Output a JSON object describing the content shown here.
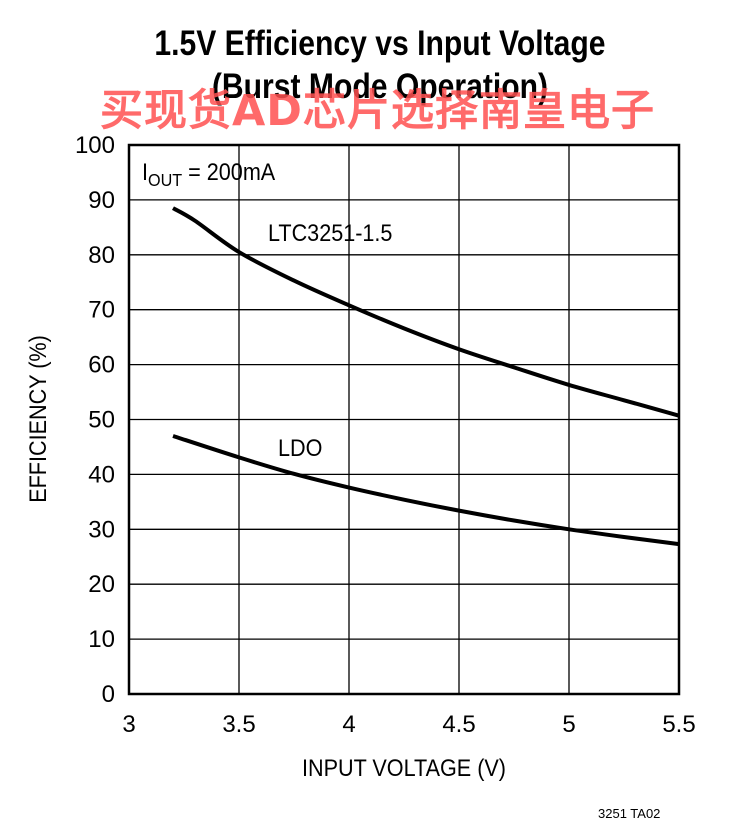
{
  "title_line1": "1.5V Efficiency vs Input Voltage",
  "title_line2": "(Burst Mode Operation)",
  "watermark": "买现货AD芯片选择南皇电子",
  "footer_code": "3251 TA02",
  "chart_data": {
    "type": "line",
    "title": "1.5V Efficiency vs Input Voltage (Burst Mode Operation)",
    "xlabel": "INPUT VOLTAGE (V)",
    "ylabel": "EFFICIENCY (%)",
    "xlim": [
      3,
      5.5
    ],
    "ylim": [
      0,
      100
    ],
    "xticks": [
      3,
      3.5,
      4,
      4.5,
      5,
      5.5
    ],
    "xtick_labels": [
      "3",
      "3.5",
      "4",
      "4.5",
      "5",
      "5.5"
    ],
    "yticks": [
      0,
      10,
      20,
      30,
      40,
      50,
      60,
      70,
      80,
      90,
      100
    ],
    "ytick_labels": [
      "0",
      "10",
      "20",
      "30",
      "40",
      "50",
      "60",
      "70",
      "80",
      "90",
      "100"
    ],
    "grid": true,
    "annotation": {
      "prefix": "I",
      "subscript": "OUT",
      "suffix": " = 200mA"
    },
    "series": [
      {
        "name": "LTC3251-1.5",
        "x": [
          3.2,
          3.3,
          3.5,
          3.75,
          4.0,
          4.25,
          4.5,
          4.75,
          5.0,
          5.25,
          5.5
        ],
        "y": [
          88.5,
          86.2,
          80.5,
          75.3,
          70.8,
          66.6,
          62.8,
          59.5,
          56.3,
          53.5,
          50.7
        ]
      },
      {
        "name": "LDO",
        "x": [
          3.2,
          3.5,
          3.75,
          4.0,
          4.25,
          4.5,
          4.75,
          5.0,
          5.25,
          5.5
        ],
        "y": [
          47.0,
          43.1,
          40.1,
          37.6,
          35.4,
          33.4,
          31.6,
          30.0,
          28.6,
          27.3
        ]
      }
    ]
  }
}
